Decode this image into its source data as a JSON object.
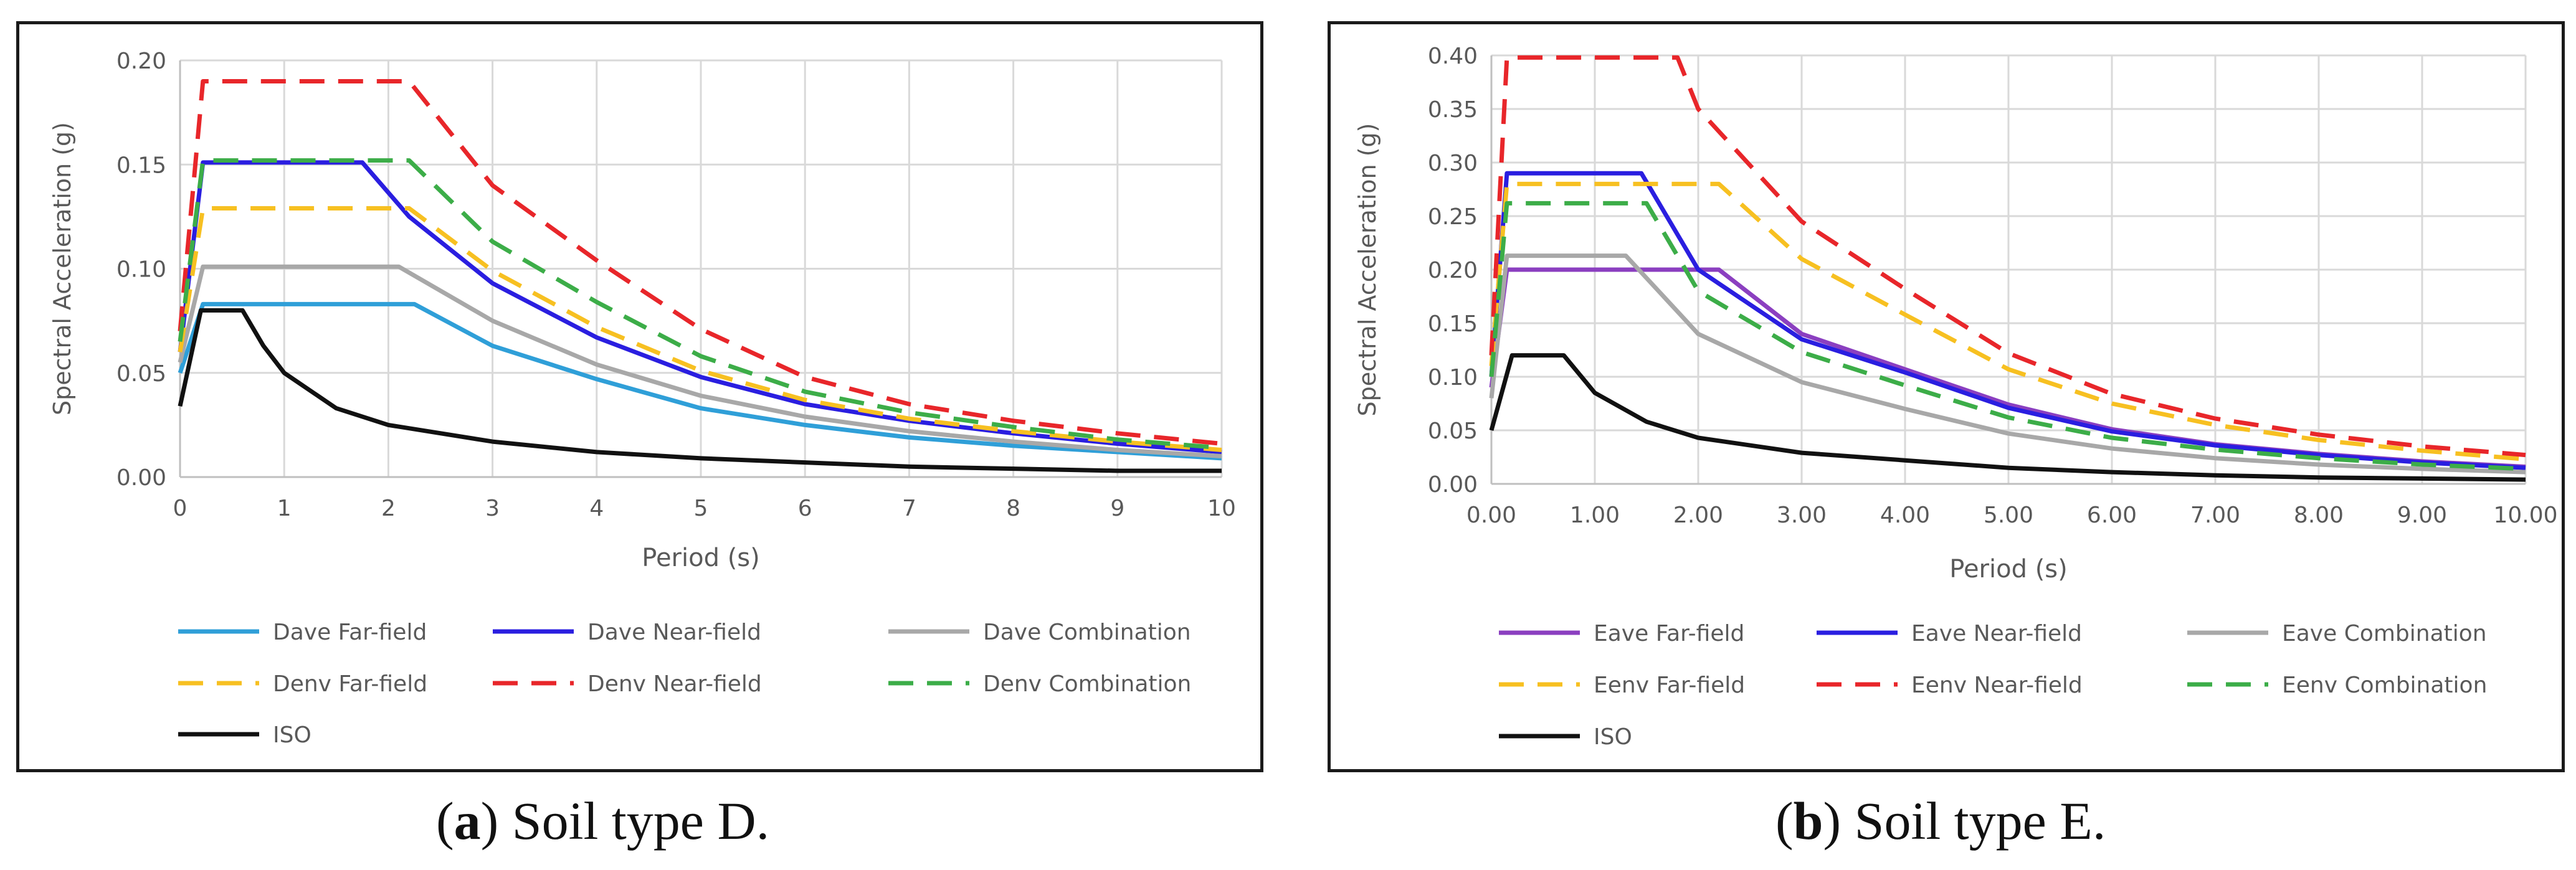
{
  "chart_data": [
    {
      "type": "line",
      "panel": "a",
      "caption_letter": "a",
      "caption_text": ") Soil type D.",
      "caption_open": "(",
      "ylabel": "Spectral Acceleration (g)",
      "xlabel": "Period (s)",
      "xlim": [
        0,
        10
      ],
      "ylim": [
        0,
        0.2
      ],
      "x_ticks": [
        0,
        1,
        2,
        3,
        4,
        5,
        6,
        7,
        8,
        9,
        10
      ],
      "x_tick_labels": [
        "0",
        "1",
        "2",
        "3",
        "4",
        "5",
        "6",
        "7",
        "8",
        "9",
        "10"
      ],
      "y_ticks": [
        0,
        0.05,
        0.1,
        0.15,
        0.2
      ],
      "y_tick_labels": [
        "0.00",
        "0.05",
        "0.10",
        "0.15",
        "0.20"
      ],
      "grid": true,
      "legend_position": "bottom",
      "series": [
        {
          "name": "Dave Far-field",
          "color": "#2f9fd8",
          "dash": "solid",
          "points": [
            [
              0,
              0.05
            ],
            [
              0.22,
              0.083
            ],
            [
              2.25,
              0.083
            ],
            [
              3,
              0.063
            ],
            [
              4,
              0.047
            ],
            [
              5,
              0.033
            ],
            [
              6,
              0.025
            ],
            [
              7,
              0.019
            ],
            [
              8,
              0.015
            ],
            [
              9,
              0.012
            ],
            [
              10,
              0.009
            ]
          ]
        },
        {
          "name": "Dave Near-field",
          "color": "#2a1ee0",
          "dash": "solid",
          "points": [
            [
              0,
              0.06
            ],
            [
              0.22,
              0.151
            ],
            [
              1.75,
              0.151
            ],
            [
              2.2,
              0.125
            ],
            [
              3,
              0.093
            ],
            [
              4,
              0.067
            ],
            [
              5,
              0.048
            ],
            [
              6,
              0.035
            ],
            [
              7,
              0.027
            ],
            [
              8,
              0.021
            ],
            [
              9,
              0.016
            ],
            [
              10,
              0.012
            ]
          ]
        },
        {
          "name": "Dave Combination",
          "color": "#a8a8a8",
          "dash": "solid",
          "points": [
            [
              0,
              0.055
            ],
            [
              0.22,
              0.101
            ],
            [
              2.1,
              0.101
            ],
            [
              3,
              0.075
            ],
            [
              4,
              0.054
            ],
            [
              5,
              0.039
            ],
            [
              6,
              0.029
            ],
            [
              7,
              0.022
            ],
            [
              8,
              0.017
            ],
            [
              9,
              0.013
            ],
            [
              10,
              0.01
            ]
          ]
        },
        {
          "name": "Denv Far-field",
          "color": "#f7c021",
          "dash": "dashed",
          "points": [
            [
              0,
              0.06
            ],
            [
              0.22,
              0.129
            ],
            [
              2.2,
              0.129
            ],
            [
              3,
              0.099
            ],
            [
              4,
              0.072
            ],
            [
              5,
              0.051
            ],
            [
              6,
              0.037
            ],
            [
              7,
              0.028
            ],
            [
              8,
              0.022
            ],
            [
              9,
              0.017
            ],
            [
              10,
              0.013
            ]
          ]
        },
        {
          "name": "Denv Near-field",
          "color": "#e8262a",
          "dash": "dashed",
          "points": [
            [
              0,
              0.07
            ],
            [
              0.22,
              0.19
            ],
            [
              2.2,
              0.19
            ],
            [
              3,
              0.14
            ],
            [
              4,
              0.104
            ],
            [
              5,
              0.071
            ],
            [
              6,
              0.048
            ],
            [
              7,
              0.035
            ],
            [
              8,
              0.027
            ],
            [
              9,
              0.021
            ],
            [
              10,
              0.016
            ]
          ]
        },
        {
          "name": "Denv Combination",
          "color": "#3cad48",
          "dash": "dashed",
          "points": [
            [
              0,
              0.065
            ],
            [
              0.22,
              0.152
            ],
            [
              2.2,
              0.152
            ],
            [
              3,
              0.113
            ],
            [
              4,
              0.084
            ],
            [
              5,
              0.058
            ],
            [
              6,
              0.041
            ],
            [
              7,
              0.031
            ],
            [
              8,
              0.024
            ],
            [
              9,
              0.018
            ],
            [
              10,
              0.014
            ]
          ]
        },
        {
          "name": "ISO",
          "color": "#111111",
          "dash": "solid",
          "points": [
            [
              0,
              0.034
            ],
            [
              0.2,
              0.08
            ],
            [
              0.6,
              0.08
            ],
            [
              0.8,
              0.063
            ],
            [
              1,
              0.05
            ],
            [
              1.5,
              0.033
            ],
            [
              2,
              0.025
            ],
            [
              3,
              0.017
            ],
            [
              4,
              0.012
            ],
            [
              5,
              0.009
            ],
            [
              6,
              0.007
            ],
            [
              7,
              0.005
            ],
            [
              8,
              0.004
            ],
            [
              9,
              0.003
            ],
            [
              10,
              0.003
            ]
          ]
        }
      ]
    },
    {
      "type": "line",
      "panel": "b",
      "caption_letter": "b",
      "caption_text": ") Soil type E.",
      "caption_open": "(",
      "ylabel": "Spectral Acceleration (g)",
      "xlabel": "Period (s)",
      "xlim": [
        0,
        10
      ],
      "ylim": [
        0,
        0.4
      ],
      "x_ticks": [
        0,
        1,
        2,
        3,
        4,
        5,
        6,
        7,
        8,
        9,
        10
      ],
      "x_tick_labels": [
        "0.00",
        "1.00",
        "2.00",
        "3.00",
        "4.00",
        "5.00",
        "6.00",
        "7.00",
        "8.00",
        "9.00",
        "10.00"
      ],
      "y_ticks": [
        0,
        0.05,
        0.1,
        0.15,
        0.2,
        0.25,
        0.3,
        0.35,
        0.4
      ],
      "y_tick_labels": [
        "0.00",
        "0.05",
        "0.10",
        "0.15",
        "0.20",
        "0.25",
        "0.30",
        "0.35",
        "0.40"
      ],
      "grid": true,
      "legend_position": "bottom",
      "series": [
        {
          "name": "Eave Far-field",
          "color": "#8b3fc0",
          "dash": "solid",
          "points": [
            [
              0,
              0.09
            ],
            [
              0.15,
              0.2
            ],
            [
              2.2,
              0.2
            ],
            [
              3,
              0.14
            ],
            [
              4,
              0.107
            ],
            [
              5,
              0.074
            ],
            [
              6,
              0.051
            ],
            [
              7,
              0.037
            ],
            [
              8,
              0.028
            ],
            [
              9,
              0.021
            ],
            [
              10,
              0.016
            ]
          ]
        },
        {
          "name": "Eave Near-field",
          "color": "#2a1ee0",
          "dash": "solid",
          "points": [
            [
              0,
              0.1
            ],
            [
              0.15,
              0.29
            ],
            [
              1.45,
              0.29
            ],
            [
              2,
              0.2
            ],
            [
              3,
              0.135
            ],
            [
              4,
              0.104
            ],
            [
              5,
              0.071
            ],
            [
              6,
              0.049
            ],
            [
              7,
              0.036
            ],
            [
              8,
              0.027
            ],
            [
              9,
              0.02
            ],
            [
              10,
              0.015
            ]
          ]
        },
        {
          "name": "Eave Combination",
          "color": "#a8a8a8",
          "dash": "solid",
          "points": [
            [
              0,
              0.08
            ],
            [
              0.15,
              0.213
            ],
            [
              1.3,
              0.213
            ],
            [
              2,
              0.14
            ],
            [
              3,
              0.095
            ],
            [
              4,
              0.07
            ],
            [
              5,
              0.047
            ],
            [
              6,
              0.033
            ],
            [
              7,
              0.024
            ],
            [
              8,
              0.018
            ],
            [
              9,
              0.014
            ],
            [
              10,
              0.011
            ]
          ]
        },
        {
          "name": "Eenv Far-field",
          "color": "#f7c021",
          "dash": "dashed",
          "points": [
            [
              0,
              0.11
            ],
            [
              0.15,
              0.28
            ],
            [
              2.2,
              0.28
            ],
            [
              3,
              0.21
            ],
            [
              4,
              0.158
            ],
            [
              5,
              0.107
            ],
            [
              6,
              0.075
            ],
            [
              7,
              0.055
            ],
            [
              8,
              0.041
            ],
            [
              9,
              0.031
            ],
            [
              10,
              0.023
            ]
          ]
        },
        {
          "name": "Eenv Near-field",
          "color": "#e8262a",
          "dash": "dashed",
          "points": [
            [
              0,
              0.12
            ],
            [
              0.15,
              0.398
            ],
            [
              1.8,
              0.398
            ],
            [
              2,
              0.35
            ],
            [
              3,
              0.245
            ],
            [
              4,
              0.182
            ],
            [
              5,
              0.122
            ],
            [
              6,
              0.084
            ],
            [
              7,
              0.061
            ],
            [
              8,
              0.046
            ],
            [
              9,
              0.035
            ],
            [
              10,
              0.027
            ]
          ]
        },
        {
          "name": "Eenv Combination",
          "color": "#3cad48",
          "dash": "dashed",
          "points": [
            [
              0,
              0.1
            ],
            [
              0.15,
              0.262
            ],
            [
              1.5,
              0.262
            ],
            [
              2,
              0.18
            ],
            [
              3,
              0.123
            ],
            [
              4,
              0.092
            ],
            [
              5,
              0.062
            ],
            [
              6,
              0.043
            ],
            [
              7,
              0.032
            ],
            [
              8,
              0.024
            ],
            [
              9,
              0.018
            ],
            [
              10,
              0.014
            ]
          ]
        },
        {
          "name": "ISO",
          "color": "#111111",
          "dash": "solid",
          "points": [
            [
              0,
              0.05
            ],
            [
              0.2,
              0.12
            ],
            [
              0.7,
              0.12
            ],
            [
              1,
              0.085
            ],
            [
              1.5,
              0.058
            ],
            [
              2,
              0.043
            ],
            [
              3,
              0.029
            ],
            [
              4,
              0.022
            ],
            [
              5,
              0.015
            ],
            [
              6,
              0.011
            ],
            [
              7,
              0.008
            ],
            [
              8,
              0.006
            ],
            [
              9,
              0.005
            ],
            [
              10,
              0.004
            ]
          ]
        }
      ]
    }
  ]
}
